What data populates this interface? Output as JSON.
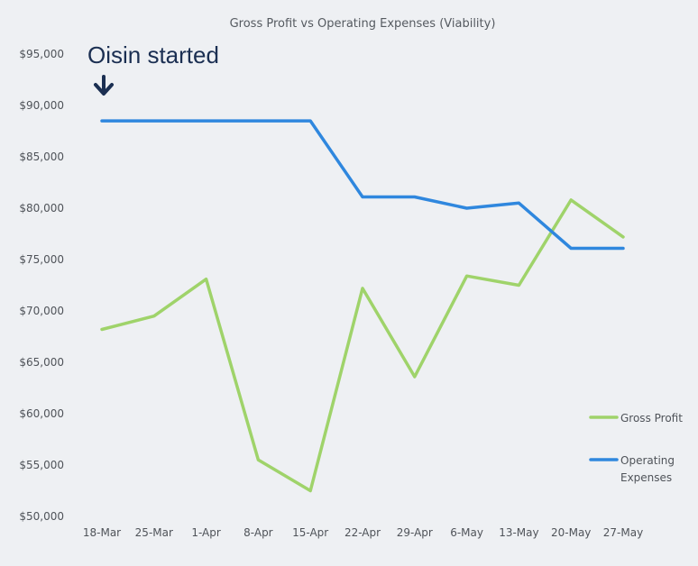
{
  "chart_data": {
    "type": "line",
    "title": "Gross Profit vs Operating Expenses (Viability)",
    "xlabel": "",
    "ylabel": "",
    "categories": [
      "18-Mar",
      "25-Mar",
      "1-Apr",
      "8-Apr",
      "15-Apr",
      "22-Apr",
      "29-Apr",
      "6-May",
      "13-May",
      "20-May",
      "27-May"
    ],
    "ylim": [
      50000,
      95000
    ],
    "yticks": [
      50000,
      55000,
      60000,
      65000,
      70000,
      75000,
      80000,
      85000,
      90000,
      95000
    ],
    "ytick_labels": [
      "$50,000",
      "$55,000",
      "$60,000",
      "$65,000",
      "$70,000",
      "$75,000",
      "$80,000",
      "$85,000",
      "$90,000",
      "$95,000"
    ],
    "grid": false,
    "legend_position": "right",
    "series": [
      {
        "name": "Gross Profit",
        "color": "#9fd36a",
        "values": [
          68200,
          69500,
          73100,
          55500,
          52500,
          72200,
          63600,
          73400,
          72500,
          80800,
          77200
        ]
      },
      {
        "name": "Operating Expenses",
        "color": "#2f87de",
        "values": [
          88500,
          88500,
          88500,
          88500,
          88500,
          81100,
          81100,
          80000,
          80500,
          76100,
          76100
        ]
      }
    ],
    "annotations": [
      {
        "text": "Oisin started",
        "category": "18-Mar",
        "icon": "down-arrow-icon",
        "color": "#1b2f52"
      }
    ]
  }
}
